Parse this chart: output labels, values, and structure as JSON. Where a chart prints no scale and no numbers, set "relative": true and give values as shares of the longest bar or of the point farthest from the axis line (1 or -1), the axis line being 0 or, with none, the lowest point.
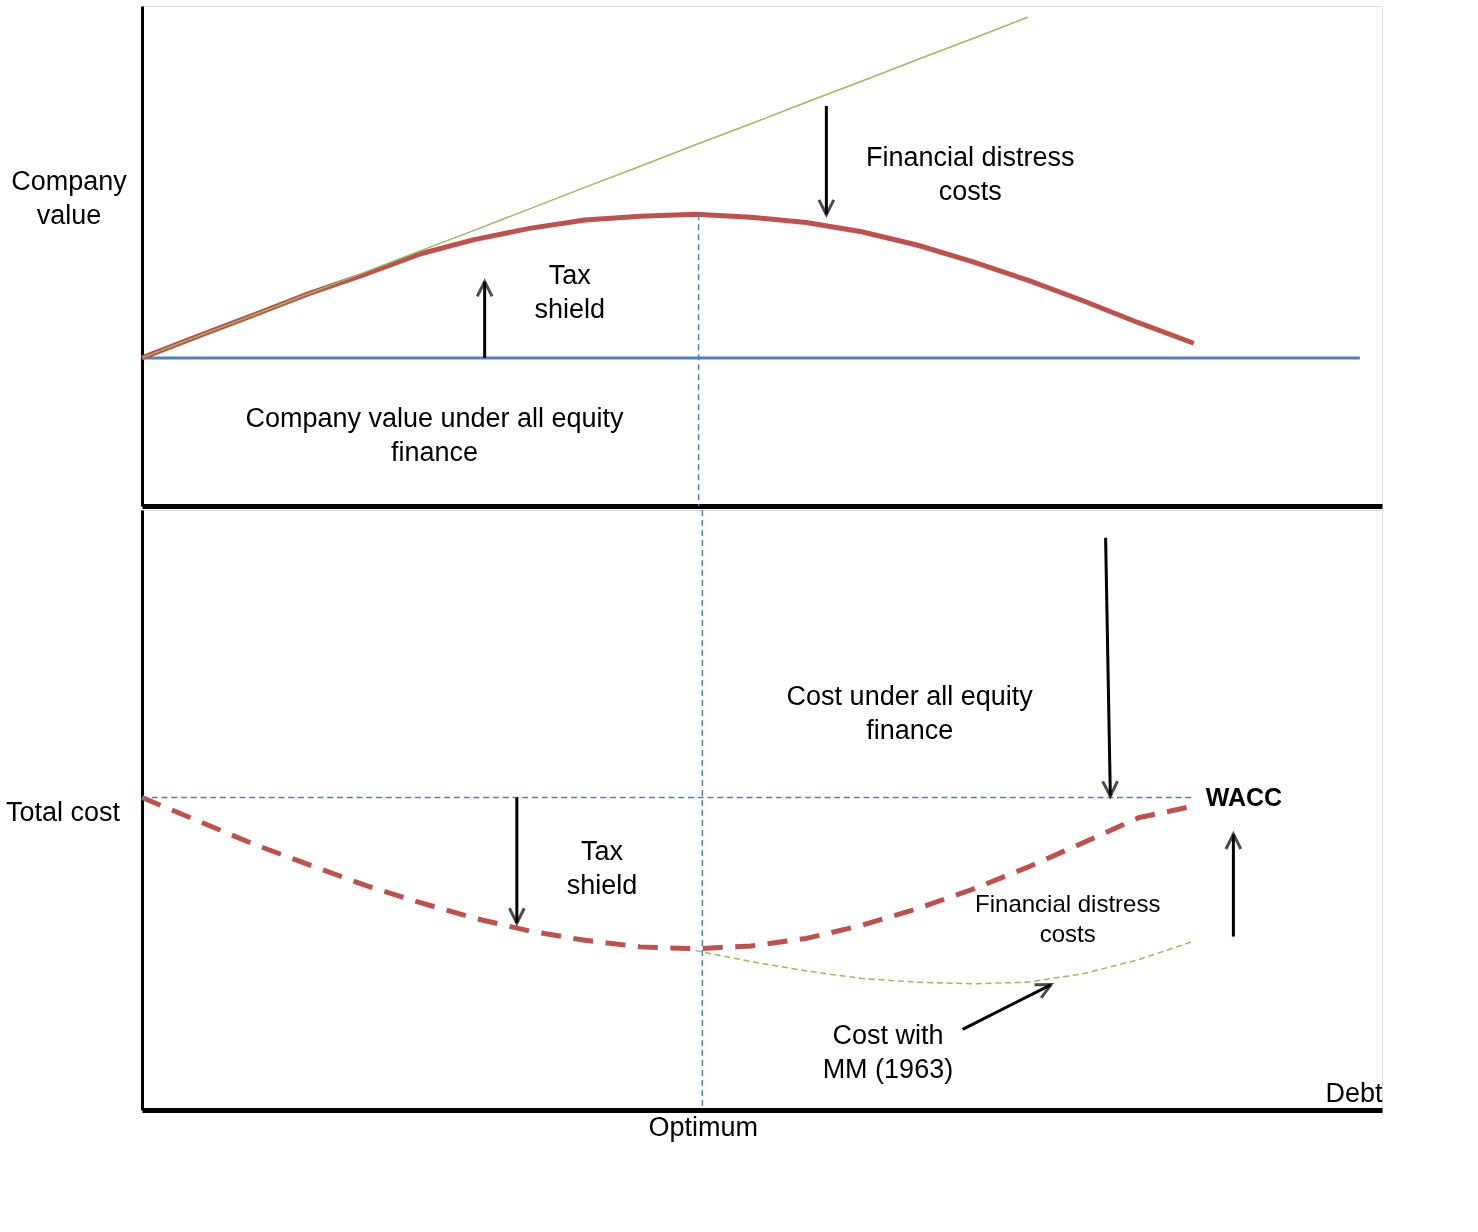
{
  "chart_data": [
    {
      "type": "line",
      "relative": true,
      "ylabel": "Company value",
      "grid": false,
      "categories": [
        null,
        null,
        null,
        null,
        null,
        null,
        null,
        null,
        null,
        null,
        null,
        null,
        null,
        null,
        null,
        null,
        null,
        null,
        null,
        null,
        null,
        null,
        null
      ],
      "series": [
        {
          "color": "#4f81bd",
          "line_style": "solid",
          "values": [
            0.303,
            0.303,
            0.303,
            0.303,
            0.303,
            0.303,
            0.303,
            0.303,
            0.303,
            0.303,
            0.303,
            0.303,
            0.303,
            0.303,
            0.303,
            0.303,
            0.303,
            0.303,
            0.303,
            0.303,
            0.303,
            0.303,
            0.303
          ]
        },
        {
          "color": "#c0504d",
          "line_style": "solid",
          "values": [
            0.303,
            0.347,
            0.39,
            0.434,
            0.473,
            0.515,
            0.545,
            0.568,
            0.585,
            0.593,
            0.597,
            0.591,
            0.58,
            0.561,
            0.534,
            0.5,
            0.462,
            0.42,
            0.375,
            0.333,
            null,
            null,
            null
          ]
        },
        {
          "color": "#9bbb59",
          "line_style": "solid",
          "values": [
            0.303,
            0.347,
            0.39,
            0.434,
            0.477,
            0.521,
            0.564,
            0.608,
            0.652,
            0.695,
            0.739,
            0.782,
            0.826,
            0.869,
            0.913,
            0.956,
            1.0,
            null,
            null,
            null,
            null,
            null,
            null
          ]
        }
      ],
      "annotations": [
        "Financial distress costs",
        "Tax shield",
        "Company value under all equity finance"
      ]
    },
    {
      "type": "line",
      "relative": true,
      "ylabel": "Total cost",
      "xlabel": "Debt",
      "grid": false,
      "categories": [
        null,
        null,
        null,
        null,
        null,
        null,
        null,
        null,
        null,
        null,
        null,
        null,
        null,
        null,
        null,
        null,
        null,
        null,
        null,
        null
      ],
      "series": [
        {
          "color": "#c0504d",
          "line_style": "dashed",
          "values": [
            1.0,
            0.926,
            0.852,
            0.786,
            0.721,
            0.665,
            0.614,
            0.573,
            0.543,
            0.522,
            0.516,
            0.525,
            0.549,
            0.591,
            0.644,
            0.706,
            0.777,
            0.855,
            0.935,
            0.973
          ]
        },
        {
          "color": "#9bbb59",
          "line_style": "dashed",
          "values": [
            null,
            null,
            null,
            null,
            null,
            null,
            null,
            null,
            null,
            null,
            0.51,
            0.475,
            0.445,
            0.421,
            0.409,
            0.404,
            0.409,
            0.436,
            0.481,
            0.54
          ]
        }
      ],
      "ref_lines": [
        {
          "axis": "y",
          "value": 1.0,
          "label": "WACC",
          "color": "#4f81bd",
          "line_style": "dashed"
        }
      ],
      "annotations": [
        "Cost under all equity finance",
        "Tax shield",
        "Financial distress costs",
        "Cost with MM (1963)",
        "Optimum"
      ]
    }
  ]
}
